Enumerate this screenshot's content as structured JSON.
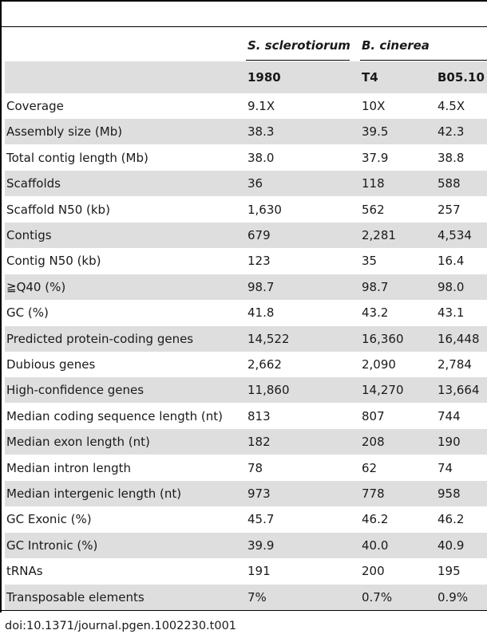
{
  "table": {
    "species": {
      "sclerotiorum": "S. sclerotiorum",
      "cinerea": "B. cinerea"
    },
    "strains": [
      "1980",
      "T4",
      "B05.10"
    ],
    "rows": [
      {
        "label": "Coverage",
        "v1": "9.1X",
        "v2": "10X",
        "v3": "4.5X"
      },
      {
        "label": "Assembly size (Mb)",
        "v1": "38.3",
        "v2": "39.5",
        "v3": "42.3"
      },
      {
        "label": "Total contig length (Mb)",
        "v1": "38.0",
        "v2": "37.9",
        "v3": "38.8"
      },
      {
        "label": "Scaffolds",
        "v1": "36",
        "v2": "118",
        "v3": "588"
      },
      {
        "label": "Scaffold N50 (kb)",
        "v1": "1,630",
        "v2": "562",
        "v3": "257"
      },
      {
        "label": "Contigs",
        "v1": "679",
        "v2": "2,281",
        "v3": "4,534"
      },
      {
        "label": "Contig N50 (kb)",
        "v1": "123",
        "v2": "35",
        "v3": "16.4"
      },
      {
        "label": "≧Q40 (%)",
        "v1": "98.7",
        "v2": "98.7",
        "v3": "98.0"
      },
      {
        "label": "GC (%)",
        "v1": "41.8",
        "v2": "43.2",
        "v3": "43.1"
      },
      {
        "label": "Predicted protein-coding genes",
        "v1": "14,522",
        "v2": "16,360",
        "v3": "16,448"
      },
      {
        "label": "Dubious genes",
        "v1": "2,662",
        "v2": "2,090",
        "v3": "2,784"
      },
      {
        "label": "High-confidence genes",
        "v1": "11,860",
        "v2": "14,270",
        "v3": "13,664"
      },
      {
        "label": "Median coding sequence length (nt)",
        "v1": "813",
        "v2": "807",
        "v3": "744"
      },
      {
        "label": "Median exon length (nt)",
        "v1": "182",
        "v2": "208",
        "v3": "190"
      },
      {
        "label": "Median intron length",
        "v1": "78",
        "v2": "62",
        "v3": "74"
      },
      {
        "label": "Median intergenic length (nt)",
        "v1": "973",
        "v2": "778",
        "v3": "958"
      },
      {
        "label": "GC Exonic (%)",
        "v1": "45.7",
        "v2": "46.2",
        "v3": "46.2"
      },
      {
        "label": "GC Intronic (%)",
        "v1": "39.9",
        "v2": "40.0",
        "v3": "40.9"
      },
      {
        "label": "tRNAs",
        "v1": "191",
        "v2": "200",
        "v3": "195"
      },
      {
        "label": "Transposable elements",
        "v1": "7%",
        "v2": "0.7%",
        "v3": "0.9%"
      }
    ],
    "doi": "doi:10.1371/journal.pgen.1002230.t001"
  }
}
